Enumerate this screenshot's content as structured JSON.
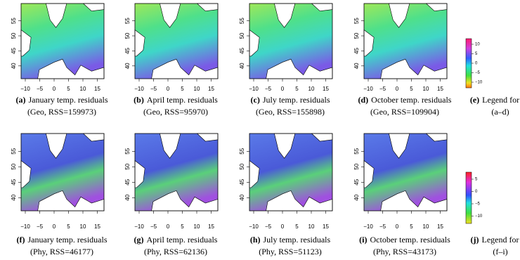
{
  "panels": [
    {
      "label": "(a)",
      "title": "January temp. residuals",
      "subtitle": "(Geo, RSS=159973)"
    },
    {
      "label": "(b)",
      "title": "April temp. residuals",
      "subtitle": "(Geo, RSS=95970)"
    },
    {
      "label": "(c)",
      "title": "July temp. residuals",
      "subtitle": "(Geo, RSS=155898)"
    },
    {
      "label": "(d)",
      "title": "October temp. residuals",
      "subtitle": "(Geo, RSS=109904)"
    },
    {
      "label": "(f)",
      "title": "January temp. residuals",
      "subtitle": "(Phy, RSS=46177)"
    },
    {
      "label": "(g)",
      "title": "April temp. residuals",
      "subtitle": "(Phy, RSS=62136)"
    },
    {
      "label": "(h)",
      "title": "July temp. residuals",
      "subtitle": "(Phy, RSS=51123)"
    },
    {
      "label": "(i)",
      "title": "October temp. residuals",
      "subtitle": "(Phy, RSS=43173)"
    }
  ],
  "legends": [
    {
      "label": "(e)",
      "title": "Legend for",
      "subtitle": "(a–d)",
      "ticks": [
        "10",
        "5",
        "0",
        "−5",
        "−10"
      ]
    },
    {
      "label": "(j)",
      "title": "Legend for",
      "subtitle": "(f–i)",
      "ticks": [
        "5",
        "0",
        "−5",
        "−10"
      ]
    }
  ],
  "x_ticks": [
    "−10",
    "−5",
    "0",
    "5",
    "10",
    "15"
  ],
  "y_ticks": [
    "40",
    "45",
    "50",
    "55"
  ]
}
